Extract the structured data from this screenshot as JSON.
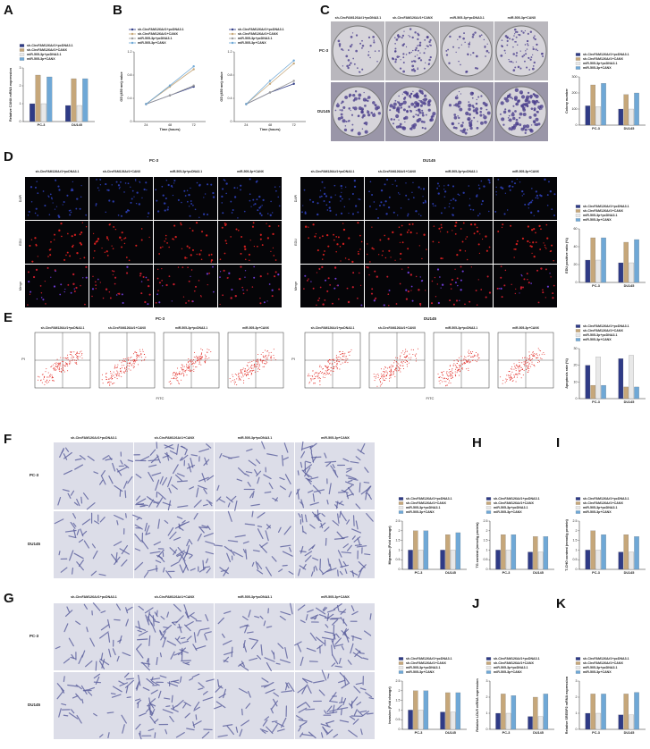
{
  "figure": {
    "letters": [
      "A",
      "B",
      "C",
      "D",
      "E",
      "F",
      "G",
      "H",
      "I",
      "J",
      "K"
    ],
    "groups": [
      "sh-CircFAM126A#1+pcDNA3.1",
      "sh-CircFAM126A#1+CANX",
      "miR-505-3p+pcDNA3.1",
      "miR-505-3p+CANX"
    ],
    "cells": [
      "PC-3",
      "DU145"
    ],
    "stains": [
      "DAPI",
      "EDU",
      "Merge"
    ],
    "flow_y": "PI",
    "flow_x": "FITC"
  },
  "chart_data": [
    {
      "type": "bar",
      "y_label": "Relative CANX mRNA expression",
      "categories": [
        "PC-3",
        "DU145"
      ],
      "ylim": [
        0,
        3
      ],
      "yticks": [
        0,
        1,
        2,
        3
      ],
      "series": [
        {
          "name": "sh-CircFAM126A#1+pcDNA3.1",
          "color": "#2f3b86",
          "values": [
            1.0,
            0.9
          ]
        },
        {
          "name": "sh-CircFAM126A#1+CANX",
          "color": "#c6a77a",
          "values": [
            2.6,
            2.4
          ]
        },
        {
          "name": "miR-505-3p+pcDNA3.1",
          "color": "#e8e8e8",
          "values": [
            1.0,
            0.9
          ]
        },
        {
          "name": "miR-505-3p+CANX",
          "color": "#6fa8d6",
          "values": [
            2.5,
            2.4
          ]
        }
      ]
    },
    {
      "type": "line",
      "y_label": "OD (450 nm) value",
      "x_label": "Time (hours)",
      "categories": [
        "24",
        "48",
        "72"
      ],
      "ylim": [
        0,
        1.2
      ],
      "yticks": [
        0,
        0.4,
        0.8,
        1.2
      ],
      "series": [
        {
          "name": "sh-CircFAM126A#1+pcDNA3.1",
          "color": "#2f3b86",
          "values": [
            0.3,
            0.45,
            0.6
          ]
        },
        {
          "name": "sh-CircFAM126A#1+CANX",
          "color": "#c6a77a",
          "values": [
            0.3,
            0.6,
            0.9
          ]
        },
        {
          "name": "miR-505-3p+pcDNA3.1",
          "color": "#9a9a9a",
          "values": [
            0.3,
            0.45,
            0.62
          ]
        },
        {
          "name": "miR-505-3p+CANX",
          "color": "#6fa8d6",
          "values": [
            0.3,
            0.62,
            0.95
          ]
        }
      ]
    },
    {
      "type": "line",
      "y_label": "OD (450 nm) value",
      "x_label": "Time (hours)",
      "categories": [
        "24",
        "48",
        "72"
      ],
      "ylim": [
        0,
        1.2
      ],
      "yticks": [
        0,
        0.4,
        0.8,
        1.2
      ],
      "series": [
        {
          "name": "sh-CircFAM126A#1+pcDNA3.1",
          "color": "#2f3b86",
          "values": [
            0.3,
            0.5,
            0.65
          ]
        },
        {
          "name": "sh-CircFAM126A#1+CANX",
          "color": "#c6a77a",
          "values": [
            0.3,
            0.65,
            1.0
          ]
        },
        {
          "name": "miR-505-3p+pcDNA3.1",
          "color": "#9a9a9a",
          "values": [
            0.3,
            0.5,
            0.7
          ]
        },
        {
          "name": "miR-505-3p+CANX",
          "color": "#6fa8d6",
          "values": [
            0.3,
            0.7,
            1.05
          ]
        }
      ]
    },
    {
      "type": "bar",
      "y_label": "Colony number",
      "categories": [
        "PC-3",
        "DU145"
      ],
      "ylim": [
        0,
        300
      ],
      "yticks": [
        0,
        100,
        200,
        300
      ],
      "series": [
        {
          "name": "sh-CircFAM126A#1+pcDNA3.1",
          "color": "#2f3b86",
          "values": [
            120,
            100
          ]
        },
        {
          "name": "sh-CircFAM126A#1+CANX",
          "color": "#c6a77a",
          "values": [
            250,
            190
          ]
        },
        {
          "name": "miR-505-3p+pcDNA3.1",
          "color": "#e8e8e8",
          "values": [
            115,
            100
          ]
        },
        {
          "name": "miR-505-3p+CANX",
          "color": "#6fa8d6",
          "values": [
            260,
            200
          ]
        }
      ]
    },
    {
      "type": "bar",
      "y_label": "EDU positive ratio (%)",
      "categories": [
        "PC-3",
        "DU145"
      ],
      "ylim": [
        0,
        60
      ],
      "yticks": [
        0,
        20,
        40,
        60
      ],
      "series": [
        {
          "name": "sh-CircFAM126A#1+pcDNA3.1",
          "color": "#2f3b86",
          "values": [
            25,
            22
          ]
        },
        {
          "name": "sh-CircFAM126A#1+CANX",
          "color": "#c6a77a",
          "values": [
            50,
            45
          ]
        },
        {
          "name": "miR-505-3p+pcDNA3.1",
          "color": "#e8e8e8",
          "values": [
            25,
            22
          ]
        },
        {
          "name": "miR-505-3p+CANX",
          "color": "#6fa8d6",
          "values": [
            50,
            48
          ]
        }
      ]
    },
    {
      "type": "bar",
      "y_label": "Apoptosis rate (%)",
      "categories": [
        "PC-3",
        "DU145"
      ],
      "ylim": [
        0,
        30
      ],
      "yticks": [
        0,
        10,
        20,
        30
      ],
      "series": [
        {
          "name": "sh-CircFAM126A#1+pcDNA3.1",
          "color": "#2f3b86",
          "values": [
            20,
            24
          ]
        },
        {
          "name": "sh-CircFAM126A#1+CANX",
          "color": "#c6a77a",
          "values": [
            8,
            7
          ]
        },
        {
          "name": "miR-505-3p+pcDNA3.1",
          "color": "#e8e8e8",
          "values": [
            25,
            26
          ]
        },
        {
          "name": "miR-505-3p+CANX",
          "color": "#6fa8d6",
          "values": [
            8,
            7
          ]
        }
      ]
    },
    {
      "type": "bar",
      "y_label": "Migration (Fold change)",
      "categories": [
        "PC-3",
        "DU145"
      ],
      "ylim": [
        0,
        2.5
      ],
      "yticks": [
        0,
        0.5,
        1,
        1.5,
        2,
        2.5
      ],
      "series": [
        {
          "name": "sh-CircFAM126A#1+pcDNA3.1",
          "color": "#2f3b86",
          "values": [
            1.0,
            1.0
          ]
        },
        {
          "name": "sh-CircFAM126A#1+CANX",
          "color": "#c6a77a",
          "values": [
            2.0,
            1.8
          ]
        },
        {
          "name": "miR-505-3p+pcDNA3.1",
          "color": "#e8e8e8",
          "values": [
            1.0,
            1.0
          ]
        },
        {
          "name": "miR-505-3p+CANX",
          "color": "#6fa8d6",
          "values": [
            2.0,
            1.9
          ]
        }
      ]
    },
    {
      "type": "bar",
      "y_label": "TG content (mmol/g protein)",
      "categories": [
        "PC-3",
        "DU145"
      ],
      "ylim": [
        0,
        2.5
      ],
      "yticks": [
        0,
        0.5,
        1,
        1.5,
        2,
        2.5
      ],
      "series": [
        {
          "name": "sh-CircFAM126A#1+pcDNA3.1",
          "color": "#2f3b86",
          "values": [
            1.0,
            0.9
          ]
        },
        {
          "name": "sh-CircFAM126A#1+CANX",
          "color": "#c6a77a",
          "values": [
            1.8,
            1.7
          ]
        },
        {
          "name": "miR-505-3p+pcDNA3.1",
          "color": "#e8e8e8",
          "values": [
            1.0,
            0.9
          ]
        },
        {
          "name": "miR-505-3p+CANX",
          "color": "#6fa8d6",
          "values": [
            1.8,
            1.7
          ]
        }
      ]
    },
    {
      "type": "bar",
      "y_label": "T-CHO content (mmol/g protein)",
      "categories": [
        "PC-3",
        "DU145"
      ],
      "ylim": [
        0,
        2.5
      ],
      "yticks": [
        0,
        0.5,
        1,
        1.5,
        2,
        2.5
      ],
      "series": [
        {
          "name": "sh-CircFAM126A#1+pcDNA3.1",
          "color": "#2f3b86",
          "values": [
            1.0,
            0.9
          ]
        },
        {
          "name": "sh-CircFAM126A#1+CANX",
          "color": "#c6a77a",
          "values": [
            2.0,
            1.8
          ]
        },
        {
          "name": "miR-505-3p+pcDNA3.1",
          "color": "#e8e8e8",
          "values": [
            1.0,
            0.9
          ]
        },
        {
          "name": "miR-505-3p+CANX",
          "color": "#6fa8d6",
          "values": [
            1.8,
            1.7
          ]
        }
      ]
    },
    {
      "type": "bar",
      "y_label": "Invasion (Fold change)",
      "categories": [
        "PC-3",
        "DU145"
      ],
      "ylim": [
        0,
        2.5
      ],
      "yticks": [
        0,
        0.5,
        1,
        1.5,
        2,
        2.5
      ],
      "series": [
        {
          "name": "sh-CircFAM126A#1+pcDNA3.1",
          "color": "#2f3b86",
          "values": [
            1.0,
            0.9
          ]
        },
        {
          "name": "sh-CircFAM126A#1+CANX",
          "color": "#c6a77a",
          "values": [
            2.0,
            1.9
          ]
        },
        {
          "name": "miR-505-3p+pcDNA3.1",
          "color": "#e8e8e8",
          "values": [
            1.0,
            0.9
          ]
        },
        {
          "name": "miR-505-3p+CANX",
          "color": "#6fa8d6",
          "values": [
            2.0,
            1.9
          ]
        }
      ]
    },
    {
      "type": "bar",
      "y_label": "Relative LDLR mRNA expression",
      "categories": [
        "PC-3",
        "DU145"
      ],
      "ylim": [
        0,
        3
      ],
      "yticks": [
        0,
        1,
        2,
        3
      ],
      "series": [
        {
          "name": "sh-CircFAM126A#1+pcDNA3.1",
          "color": "#2f3b86",
          "values": [
            1.0,
            0.8
          ]
        },
        {
          "name": "sh-CircFAM126A#1+CANX",
          "color": "#c6a77a",
          "values": [
            2.2,
            2.0
          ]
        },
        {
          "name": "miR-505-3p+pcDNA3.1",
          "color": "#e8e8e8",
          "values": [
            1.0,
            0.8
          ]
        },
        {
          "name": "miR-505-3p+CANX",
          "color": "#6fa8d6",
          "values": [
            2.1,
            2.2
          ]
        }
      ]
    },
    {
      "type": "bar",
      "y_label": "Relative SREBP2 mRNA expression",
      "categories": [
        "PC-3",
        "DU145"
      ],
      "ylim": [
        0,
        3
      ],
      "yticks": [
        0,
        1,
        2,
        3
      ],
      "series": [
        {
          "name": "sh-CircFAM126A#1+pcDNA3.1",
          "color": "#2f3b86",
          "values": [
            1.0,
            0.9
          ]
        },
        {
          "name": "sh-CircFAM126A#1+CANX",
          "color": "#c6a77a",
          "values": [
            2.2,
            2.2
          ]
        },
        {
          "name": "miR-505-3p+pcDNA3.1",
          "color": "#e8e8e8",
          "values": [
            1.0,
            0.9
          ]
        },
        {
          "name": "miR-505-3p+CANX",
          "color": "#6fa8d6",
          "values": [
            2.2,
            2.3
          ]
        }
      ]
    }
  ]
}
